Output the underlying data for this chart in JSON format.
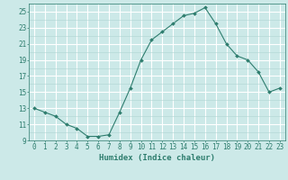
{
  "x": [
    0,
    1,
    2,
    3,
    4,
    5,
    6,
    7,
    8,
    9,
    10,
    11,
    12,
    13,
    14,
    15,
    16,
    17,
    18,
    19,
    20,
    21,
    22,
    23
  ],
  "y": [
    13,
    12.5,
    12,
    11,
    10.5,
    9.5,
    9.5,
    9.7,
    12.5,
    15.5,
    19,
    21.5,
    22.5,
    23.5,
    24.5,
    24.8,
    25.5,
    23.5,
    21,
    19.5,
    19,
    17.5,
    15,
    15.5
  ],
  "line_color": "#2e7d6e",
  "marker": "D",
  "marker_size": 2.0,
  "bg_color": "#cce9e8",
  "grid_color_major": "#aed4d2",
  "grid_color_minor": "#aed4d2",
  "grid_color_white": "#ffffff",
  "xlabel": "Humidex (Indice chaleur)",
  "xlim": [
    -0.5,
    23.5
  ],
  "ylim": [
    9,
    26
  ],
  "yticks": [
    9,
    11,
    13,
    15,
    17,
    19,
    21,
    23,
    25
  ],
  "xticks": [
    0,
    1,
    2,
    3,
    4,
    5,
    6,
    7,
    8,
    9,
    10,
    11,
    12,
    13,
    14,
    15,
    16,
    17,
    18,
    19,
    20,
    21,
    22,
    23
  ],
  "tick_color": "#2e7d6e",
  "label_fontsize": 6.5,
  "tick_fontsize": 5.5,
  "linewidth": 0.8
}
